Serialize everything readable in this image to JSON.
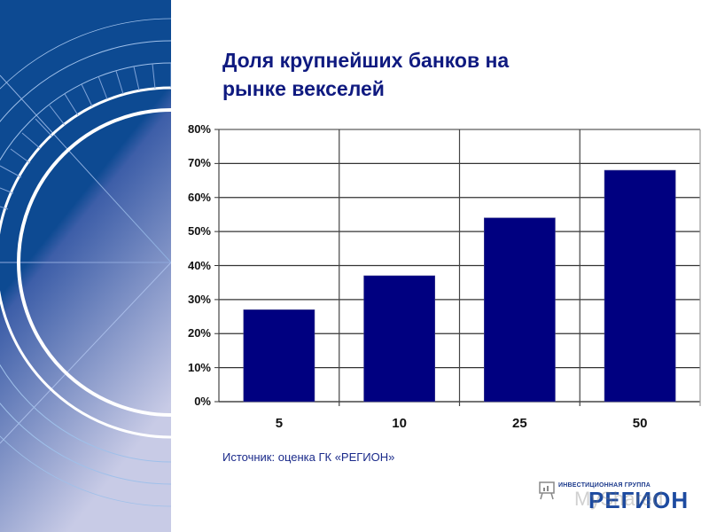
{
  "slide": {
    "title_line1": "Доля крупнейших банков на",
    "title_line2": "рынке векселей",
    "source": "Источник: оценка ГК «РЕГИОН»",
    "logo": {
      "small_text": "ИНВЕСТИЦИОННАЯ ГРУППА",
      "big_text": "РЕГИОН",
      "watermark": "MyShared"
    },
    "colors": {
      "bar": "#000080",
      "title": "#0f1a80",
      "side_dark": "#0d4a92",
      "side_light": "#c8cbe6"
    }
  },
  "axis": {
    "y_ticks": [
      "80%",
      "70%",
      "60%",
      "50%",
      "40%",
      "30%",
      "20%",
      "10%",
      "0%"
    ],
    "x_ticks": [
      "5",
      "10",
      "25",
      "50"
    ]
  },
  "chart_data": {
    "type": "bar",
    "title": "Доля крупнейших банков на рынке векселей",
    "categories": [
      "5",
      "10",
      "25",
      "50"
    ],
    "values": [
      27,
      37,
      54,
      68
    ],
    "xlabel": "",
    "ylabel": "",
    "ylim": [
      0,
      80
    ],
    "y_unit": "%",
    "y_tick_step": 10,
    "grid": true,
    "legend": "none",
    "bar_color": "#000080",
    "annotations": [
      "Источник: оценка ГК «РЕГИОН»"
    ]
  }
}
